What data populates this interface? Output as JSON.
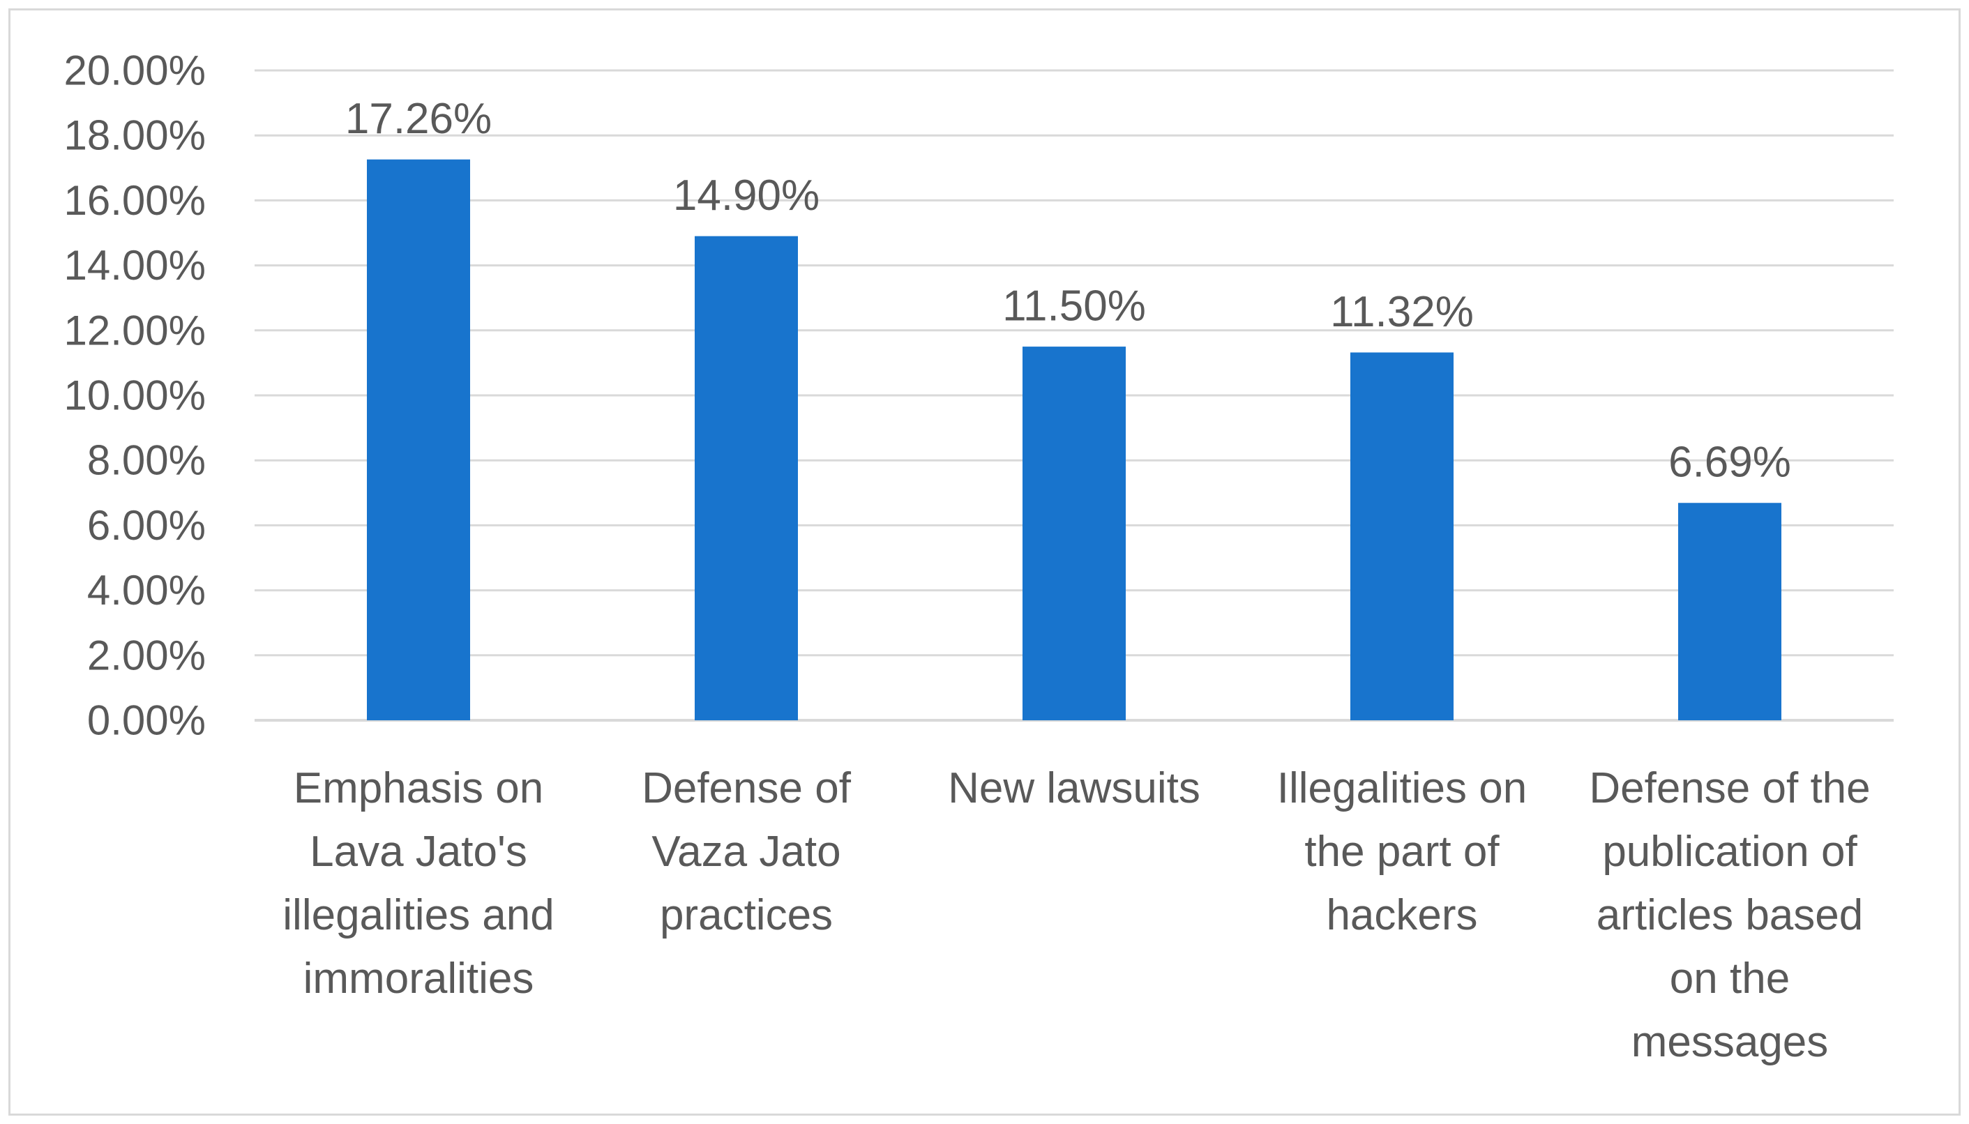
{
  "chart_data": {
    "type": "bar",
    "title": "",
    "xlabel": "",
    "ylabel": "",
    "categories": [
      "Emphasis on Lava Jato's illegalities and immoralities",
      "Defense of Vaza Jato practices",
      "New lawsuits",
      "Illegalities on the part of hackers",
      "Defense of the publication of articles based on the messages"
    ],
    "category_lines": [
      [
        "Emphasis on",
        "Lava Jato's",
        "illegalities and",
        "immoralities"
      ],
      [
        "Defense of",
        "Vaza Jato",
        "practices"
      ],
      [
        "New lawsuits"
      ],
      [
        "Illegalities on",
        "the part of",
        "hackers"
      ],
      [
        "Defense of the",
        "publication of",
        "articles based",
        "on the",
        "messages"
      ]
    ],
    "values": [
      17.26,
      14.9,
      11.5,
      11.32,
      6.69
    ],
    "data_labels": [
      "17.26%",
      "14.90%",
      "11.50%",
      "11.32%",
      "6.69%"
    ],
    "ylim": [
      0,
      20
    ],
    "yticks": [
      0,
      2,
      4,
      6,
      8,
      10,
      12,
      14,
      16,
      18,
      20
    ],
    "ytick_labels": [
      "0.00%",
      "2.00%",
      "4.00%",
      "6.00%",
      "8.00%",
      "10.00%",
      "12.00%",
      "14.00%",
      "16.00%",
      "18.00%",
      "20.00%"
    ],
    "grid": true,
    "legend": "none",
    "bar_color": "#1874CD",
    "grid_color": "#d9d9d9",
    "text_color": "#595959"
  }
}
